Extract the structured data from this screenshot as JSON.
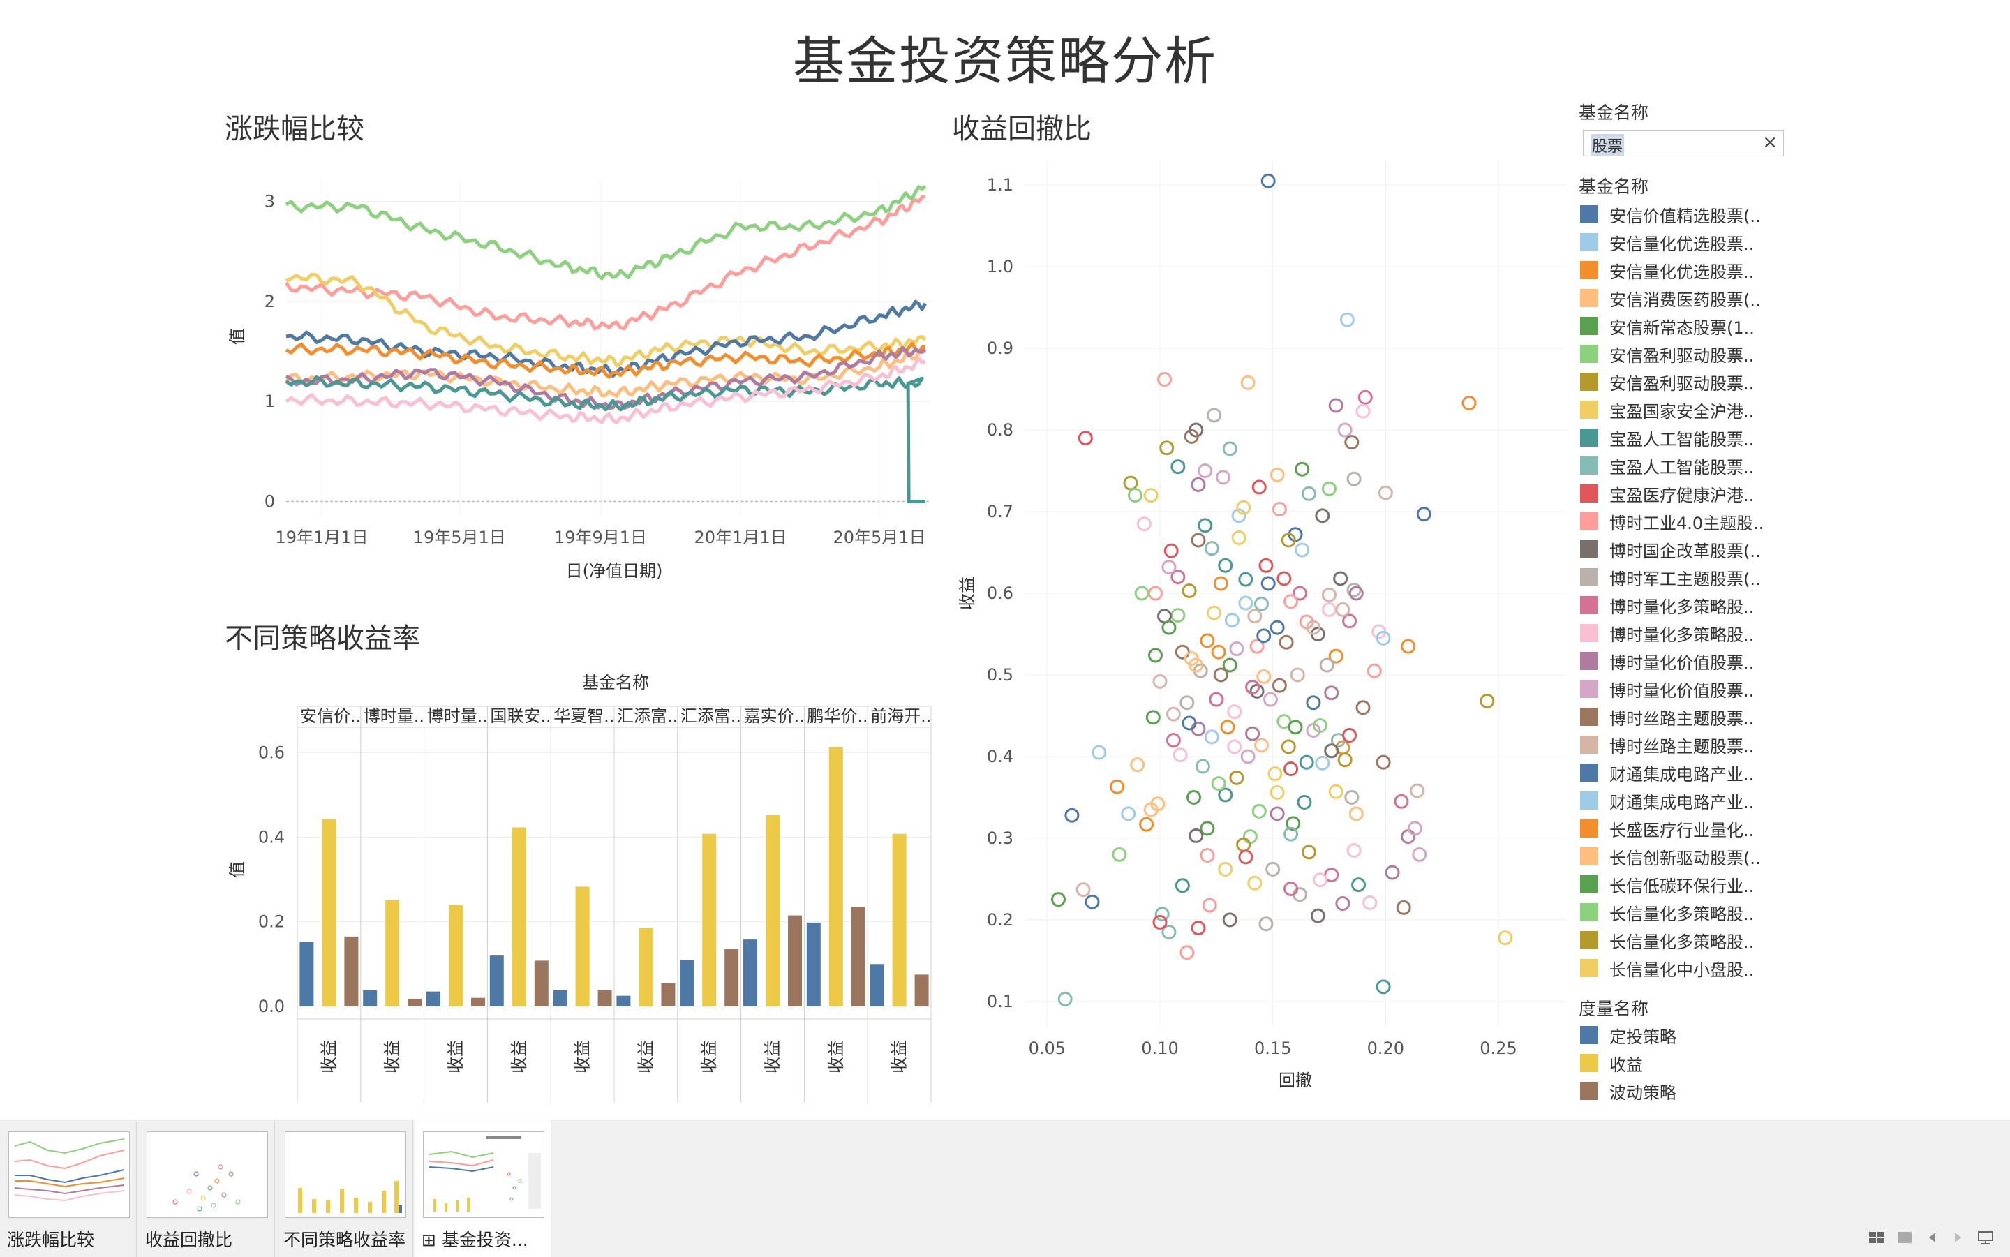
{
  "dashboard": {
    "title": "基金投资策略分析"
  },
  "line_sheet": {
    "title": "涨跌幅比较",
    "ylabel": "值",
    "xlabel": "日(净值日期)"
  },
  "scatter_sheet": {
    "title": "收益回撤比",
    "xlabel": "回撤",
    "ylabel": "收益"
  },
  "bar_sheet": {
    "title": "不同策略收益率",
    "header": "基金名称",
    "ylabel": "值",
    "row_label": "收益"
  },
  "filter": {
    "label": "基金名称",
    "value": "股票",
    "clear": "×"
  },
  "legend_funds": {
    "title": "基金名称",
    "items": [
      {
        "label": "安信价值精选股票(..",
        "color": "#4e79a7"
      },
      {
        "label": "安信量化优选股票..",
        "color": "#a0cbe8"
      },
      {
        "label": "安信量化优选股票..",
        "color": "#f28e2b"
      },
      {
        "label": "安信消费医药股票(..",
        "color": "#ffbe7d"
      },
      {
        "label": "安信新常态股票(1..",
        "color": "#59a14f"
      },
      {
        "label": "安信盈利驱动股票..",
        "color": "#8cd17d"
      },
      {
        "label": "安信盈利驱动股票..",
        "color": "#b6992d"
      },
      {
        "label": "宝盈国家安全沪港..",
        "color": "#f1ce63"
      },
      {
        "label": "宝盈人工智能股票..",
        "color": "#499894"
      },
      {
        "label": "宝盈人工智能股票..",
        "color": "#86bcb6"
      },
      {
        "label": "宝盈医疗健康沪港..",
        "color": "#e15759"
      },
      {
        "label": "博时工业4.0主题股..",
        "color": "#ff9d9a"
      },
      {
        "label": "博时国企改革股票(..",
        "color": "#79706e"
      },
      {
        "label": "博时军工主题股票(..",
        "color": "#bab0ac"
      },
      {
        "label": "博时量化多策略股..",
        "color": "#d37295"
      },
      {
        "label": "博时量化多策略股..",
        "color": "#fabfd2"
      },
      {
        "label": "博时量化价值股票..",
        "color": "#b07aa1"
      },
      {
        "label": "博时量化价值股票..",
        "color": "#d4a6c8"
      },
      {
        "label": "博时丝路主题股票..",
        "color": "#9d7660"
      },
      {
        "label": "博时丝路主题股票..",
        "color": "#d7b5a6"
      },
      {
        "label": "财通集成电路产业..",
        "color": "#4e79a7"
      },
      {
        "label": "财通集成电路产业..",
        "color": "#a0cbe8"
      },
      {
        "label": "长盛医疗行业量化..",
        "color": "#f28e2b"
      },
      {
        "label": "长信创新驱动股票(..",
        "color": "#ffbe7d"
      },
      {
        "label": "长信低碳环保行业..",
        "color": "#59a14f"
      },
      {
        "label": "长信量化多策略股..",
        "color": "#8cd17d"
      },
      {
        "label": "长信量化多策略股..",
        "color": "#b6992d"
      },
      {
        "label": "长信量化中小盘股..",
        "color": "#f1ce63"
      }
    ]
  },
  "legend_measures": {
    "title": "度量名称",
    "items": [
      {
        "label": "定投策略",
        "color": "#4e79a7"
      },
      {
        "label": "收益",
        "color": "#edc948"
      },
      {
        "label": "波动策略",
        "color": "#9c755f"
      }
    ]
  },
  "tabs": [
    {
      "label": "涨跌幅比较"
    },
    {
      "label": "收益回撤比"
    },
    {
      "label": "不同策略收益率"
    },
    {
      "label": "基金投资..."
    }
  ],
  "chart_data": [
    {
      "type": "line",
      "title": "涨跌幅比较",
      "xlabel": "日(净值日期)",
      "ylabel": "值",
      "x_ticks": [
        "19年1月1日",
        "19年5月1日",
        "19年9月1日",
        "20年1月1日",
        "20年5月1日"
      ],
      "x_range": [
        "2018-12-01",
        "2020-06-15"
      ],
      "y_ticks": [
        0,
        1,
        2,
        3
      ],
      "ylim": [
        -0.15,
        3.2
      ],
      "x": [
        "2018-12-01",
        "2019-02-01",
        "2019-04-01",
        "2019-06-01",
        "2019-08-01",
        "2019-09-15",
        "2019-11-01",
        "2020-01-01",
        "2020-03-01",
        "2020-05-01",
        "2020-06-10"
      ],
      "series": [
        {
          "color": "#8cd17d",
          "values": [
            2.95,
            2.95,
            2.72,
            2.55,
            2.35,
            2.25,
            2.45,
            2.75,
            2.75,
            2.9,
            3.15
          ]
        },
        {
          "color": "#ff9d9a",
          "values": [
            2.15,
            2.1,
            2.05,
            1.85,
            1.8,
            1.75,
            1.95,
            2.3,
            2.55,
            2.8,
            3.05
          ]
        },
        {
          "color": "#f1ce63",
          "values": [
            2.25,
            2.2,
            1.75,
            1.55,
            1.45,
            1.4,
            1.55,
            1.62,
            1.5,
            1.55,
            1.62
          ]
        },
        {
          "color": "#4e79a7",
          "values": [
            1.65,
            1.62,
            1.5,
            1.45,
            1.35,
            1.3,
            1.45,
            1.6,
            1.65,
            1.85,
            1.98
          ]
        },
        {
          "color": "#f28e2b",
          "values": [
            1.52,
            1.52,
            1.48,
            1.38,
            1.32,
            1.28,
            1.38,
            1.45,
            1.4,
            1.48,
            1.55
          ]
        },
        {
          "color": "#ffbe7d",
          "values": [
            1.22,
            1.25,
            1.28,
            1.2,
            1.12,
            1.08,
            1.18,
            1.25,
            1.22,
            1.35,
            1.5
          ]
        },
        {
          "color": "#b07aa1",
          "values": [
            1.2,
            1.22,
            1.3,
            1.2,
            1.02,
            0.95,
            1.08,
            1.2,
            1.25,
            1.45,
            1.52
          ]
        },
        {
          "color": "#499894",
          "values": [
            1.2,
            1.18,
            1.15,
            1.08,
            0.98,
            0.95,
            1.05,
            1.12,
            1.1,
            1.18,
            0.0
          ]
        },
        {
          "color": "#fabfd2",
          "values": [
            1.02,
            1.0,
            0.98,
            0.92,
            0.85,
            0.82,
            0.95,
            1.05,
            1.12,
            1.25,
            1.4
          ]
        }
      ]
    },
    {
      "type": "scatter",
      "title": "收益回撤比",
      "xlabel": "回撤",
      "ylabel": "收益",
      "x_ticks": [
        0.05,
        0.1,
        0.15,
        0.2,
        0.25
      ],
      "xlim": [
        0.04,
        0.28
      ],
      "y_ticks": [
        0.1,
        0.2,
        0.3,
        0.4,
        0.5,
        0.6,
        0.7,
        0.8,
        0.9,
        1.0,
        1.1
      ],
      "ylim": [
        0.07,
        1.13
      ],
      "points": [
        [
          0.148,
          1.105
        ],
        [
          0.183,
          0.935
        ],
        [
          0.237,
          0.833
        ],
        [
          0.139,
          0.858
        ],
        [
          0.055,
          0.225
        ],
        [
          0.082,
          0.28
        ],
        [
          0.245,
          0.468
        ],
        [
          0.253,
          0.178
        ],
        [
          0.199,
          0.118
        ],
        [
          0.058,
          0.103
        ],
        [
          0.067,
          0.79
        ],
        [
          0.102,
          0.862
        ],
        [
          0.116,
          0.8
        ],
        [
          0.124,
          0.818
        ],
        [
          0.108,
          0.62
        ],
        [
          0.093,
          0.685
        ],
        [
          0.117,
          0.733
        ],
        [
          0.128,
          0.742
        ],
        [
          0.11,
          0.528
        ],
        [
          0.1,
          0.492
        ],
        [
          0.152,
          0.558
        ],
        [
          0.163,
          0.653
        ],
        [
          0.178,
          0.523
        ],
        [
          0.096,
          0.335
        ],
        [
          0.121,
          0.312
        ],
        [
          0.14,
          0.302
        ],
        [
          0.166,
          0.283
        ],
        [
          0.142,
          0.245
        ],
        [
          0.188,
          0.243
        ],
        [
          0.101,
          0.207
        ],
        [
          0.117,
          0.19
        ],
        [
          0.112,
          0.16
        ],
        [
          0.17,
          0.205
        ],
        [
          0.147,
          0.195
        ],
        [
          0.207,
          0.345
        ],
        [
          0.186,
          0.285
        ],
        [
          0.21,
          0.302
        ],
        [
          0.215,
          0.28
        ],
        [
          0.19,
          0.46
        ],
        [
          0.175,
          0.598
        ],
        [
          0.16,
          0.672
        ],
        [
          0.135,
          0.695
        ],
        [
          0.127,
          0.612
        ],
        [
          0.146,
          0.498
        ],
        [
          0.131,
          0.512
        ],
        [
          0.155,
          0.443
        ],
        [
          0.157,
          0.412
        ],
        [
          0.152,
          0.356
        ],
        [
          0.129,
          0.353
        ],
        [
          0.119,
          0.388
        ],
        [
          0.158,
          0.385
        ],
        [
          0.143,
          0.535
        ],
        [
          0.17,
          0.55
        ],
        [
          0.174,
          0.512
        ],
        [
          0.184,
          0.566
        ],
        [
          0.197,
          0.553
        ],
        [
          0.176,
          0.478
        ],
        [
          0.168,
          0.432
        ],
        [
          0.199,
          0.393
        ],
        [
          0.214,
          0.358
        ],
        [
          0.061,
          0.328
        ],
        [
          0.073,
          0.405
        ],
        [
          0.081,
          0.363
        ],
        [
          0.09,
          0.39
        ],
        [
          0.097,
          0.448
        ],
        [
          0.108,
          0.573
        ],
        [
          0.113,
          0.603
        ],
        [
          0.124,
          0.576
        ],
        [
          0.138,
          0.617
        ],
        [
          0.145,
          0.587
        ],
        [
          0.147,
          0.634
        ],
        [
          0.165,
          0.565
        ],
        [
          0.18,
          0.618
        ],
        [
          0.186,
          0.604
        ],
        [
          0.191,
          0.84
        ],
        [
          0.19,
          0.823
        ],
        [
          0.178,
          0.83
        ],
        [
          0.182,
          0.8
        ],
        [
          0.185,
          0.785
        ],
        [
          0.2,
          0.723
        ],
        [
          0.217,
          0.697
        ],
        [
          0.199,
          0.545
        ],
        [
          0.21,
          0.535
        ],
        [
          0.152,
          0.745
        ],
        [
          0.163,
          0.752
        ],
        [
          0.175,
          0.728
        ],
        [
          0.157,
          0.665
        ],
        [
          0.135,
          0.668
        ],
        [
          0.12,
          0.683
        ],
        [
          0.123,
          0.655
        ],
        [
          0.105,
          0.652
        ],
        [
          0.098,
          0.6
        ],
        [
          0.102,
          0.572
        ],
        [
          0.118,
          0.505
        ],
        [
          0.125,
          0.47
        ],
        [
          0.133,
          0.455
        ],
        [
          0.141,
          0.428
        ],
        [
          0.149,
          0.47
        ],
        [
          0.153,
          0.487
        ],
        [
          0.161,
          0.5
        ],
        [
          0.168,
          0.466
        ],
        [
          0.172,
          0.392
        ],
        [
          0.181,
          0.411
        ],
        [
          0.187,
          0.33
        ],
        [
          0.159,
          0.318
        ],
        [
          0.144,
          0.333
        ],
        [
          0.137,
          0.292
        ],
        [
          0.129,
          0.262
        ],
        [
          0.11,
          0.242
        ],
        [
          0.104,
          0.185
        ],
        [
          0.1,
          0.197
        ],
        [
          0.122,
          0.218
        ],
        [
          0.131,
          0.2
        ],
        [
          0.162,
          0.231
        ],
        [
          0.176,
          0.255
        ],
        [
          0.193,
          0.221
        ],
        [
          0.203,
          0.258
        ],
        [
          0.213,
          0.312
        ],
        [
          0.208,
          0.215
        ],
        [
          0.066,
          0.237
        ],
        [
          0.07,
          0.222
        ],
        [
          0.086,
          0.33
        ],
        [
          0.094,
          0.317
        ],
        [
          0.099,
          0.342
        ],
        [
          0.115,
          0.35
        ],
        [
          0.126,
          0.367
        ],
        [
          0.134,
          0.374
        ],
        [
          0.151,
          0.379
        ],
        [
          0.165,
          0.393
        ],
        [
          0.179,
          0.42
        ],
        [
          0.184,
          0.426
        ],
        [
          0.195,
          0.505
        ],
        [
          0.143,
          0.48
        ],
        [
          0.112,
          0.466
        ],
        [
          0.106,
          0.42
        ],
        [
          0.109,
          0.402
        ],
        [
          0.117,
          0.434
        ],
        [
          0.139,
          0.4
        ],
        [
          0.156,
          0.54
        ],
        [
          0.168,
          0.558
        ],
        [
          0.148,
          0.612
        ],
        [
          0.138,
          0.588
        ],
        [
          0.121,
          0.542
        ],
        [
          0.114,
          0.52
        ],
        [
          0.104,
          0.558
        ],
        [
          0.092,
          0.6
        ],
        [
          0.087,
          0.735
        ],
        [
          0.096,
          0.72
        ],
        [
          0.108,
          0.755
        ],
        [
          0.131,
          0.777
        ],
        [
          0.144,
          0.73
        ],
        [
          0.153,
          0.703
        ],
        [
          0.172,
          0.695
        ],
        [
          0.186,
          0.74
        ],
        [
          0.162,
          0.6
        ],
        [
          0.175,
          0.58
        ],
        [
          0.187,
          0.6
        ],
        [
          0.134,
          0.532
        ],
        [
          0.127,
          0.5
        ],
        [
          0.106,
          0.452
        ],
        [
          0.113,
          0.441
        ],
        [
          0.123,
          0.424
        ],
        [
          0.13,
          0.436
        ],
        [
          0.145,
          0.414
        ],
        [
          0.16,
          0.436
        ],
        [
          0.171,
          0.438
        ],
        [
          0.182,
          0.396
        ],
        [
          0.178,
          0.357
        ],
        [
          0.164,
          0.344
        ],
        [
          0.158,
          0.305
        ],
        [
          0.138,
          0.277
        ],
        [
          0.121,
          0.279
        ],
        [
          0.116,
          0.303
        ],
        [
          0.15,
          0.262
        ],
        [
          0.158,
          0.238
        ],
        [
          0.171,
          0.249
        ],
        [
          0.181,
          0.22
        ],
        [
          0.12,
          0.75
        ],
        [
          0.114,
          0.792
        ],
        [
          0.142,
          0.572
        ],
        [
          0.146,
          0.548
        ],
        [
          0.132,
          0.567
        ],
        [
          0.126,
          0.528
        ],
        [
          0.116,
          0.512
        ],
        [
          0.098,
          0.524
        ],
        [
          0.089,
          0.72
        ],
        [
          0.103,
          0.778
        ],
        [
          0.137,
          0.705
        ],
        [
          0.129,
          0.634
        ],
        [
          0.166,
          0.722
        ],
        [
          0.155,
          0.618
        ],
        [
          0.158,
          0.59
        ],
        [
          0.176,
          0.407
        ],
        [
          0.185,
          0.35
        ],
        [
          0.141,
          0.485
        ],
        [
          0.133,
          0.412
        ],
        [
          0.152,
          0.33
        ],
        [
          0.104,
          0.632
        ],
        [
          0.117,
          0.665
        ],
        [
          0.181,
          0.58
        ]
      ],
      "colors": [
        "#4e79a7",
        "#a0cbe8",
        "#f28e2b",
        "#ffbe7d",
        "#59a14f",
        "#8cd17d",
        "#b6992d",
        "#f1ce63",
        "#499894",
        "#86bcb6",
        "#e15759",
        "#ff9d9a",
        "#79706e",
        "#bab0ac",
        "#d37295",
        "#fabfd2",
        "#b07aa1",
        "#d4a6c8",
        "#9d7660",
        "#d7b5a6"
      ]
    },
    {
      "type": "bar",
      "title": "不同策略收益率",
      "ylabel": "值",
      "y_ticks": [
        0.0,
        0.2,
        0.4,
        0.6
      ],
      "ylim": [
        -0.03,
        0.66
      ],
      "categories": [
        "安信价..",
        "博时量..",
        "博时量..",
        "国联安..",
        "华夏智..",
        "汇添富..",
        "汇添富..",
        "嘉实价..",
        "鹏华价..",
        "前海开.."
      ],
      "series": [
        {
          "name": "定投策略",
          "color": "#4e79a7",
          "values": [
            0.152,
            0.038,
            0.035,
            0.12,
            0.038,
            0.025,
            0.11,
            0.158,
            0.198,
            0.1
          ]
        },
        {
          "name": "收益",
          "color": "#edc948",
          "values": [
            0.443,
            0.252,
            0.24,
            0.423,
            0.283,
            0.186,
            0.408,
            0.452,
            0.613,
            0.408
          ]
        },
        {
          "name": "波动策略",
          "color": "#9c755f",
          "values": [
            0.165,
            0.018,
            0.02,
            0.108,
            0.038,
            0.055,
            0.135,
            0.215,
            0.235,
            0.075
          ]
        }
      ]
    }
  ]
}
